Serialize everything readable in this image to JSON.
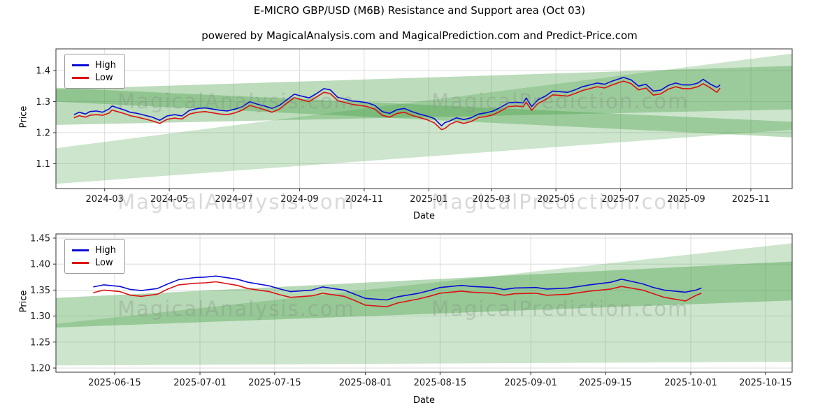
{
  "page": {
    "title": "E-MICRO GBP/USD (M6B) Resistance and Support area (Oct 03)",
    "subtitle": "powered by MagicalAnalysis.com and MagicalPrediction.com and Predict-Price.com"
  },
  "watermarks": [
    "MagicalAnalysis.com",
    "MagicalPrediction.com"
  ],
  "colors": {
    "high": "#0b0bd6",
    "low": "#dd1111",
    "band_light": "#55aa55",
    "band_mid": "#3f9b3f",
    "grid": "#d8d8d8"
  },
  "chart_data": [
    {
      "type": "line",
      "title": "Daily High/Low with resistance and support bands",
      "xlabel": "Date",
      "ylabel": "Price",
      "xlim": [
        "2024-01-15",
        "2025-12-10"
      ],
      "ylim": [
        1.02,
        1.47
      ],
      "grid": true,
      "legend_position": "upper left",
      "xticks": [
        {
          "v": "2024-03-01",
          "label": "2024-03"
        },
        {
          "v": "2024-05-01",
          "label": "2024-05"
        },
        {
          "v": "2024-07-01",
          "label": "2024-07"
        },
        {
          "v": "2024-09-01",
          "label": "2024-09"
        },
        {
          "v": "2024-11-01",
          "label": "2024-11"
        },
        {
          "v": "2025-01-01",
          "label": "2025-01"
        },
        {
          "v": "2025-03-01",
          "label": "2025-03"
        },
        {
          "v": "2025-05-01",
          "label": "2025-05"
        },
        {
          "v": "2025-07-01",
          "label": "2025-07"
        },
        {
          "v": "2025-09-01",
          "label": "2025-09"
        },
        {
          "v": "2025-11-01",
          "label": "2025-11"
        }
      ],
      "yticks": [
        {
          "v": 1.1,
          "label": "1.1"
        },
        {
          "v": 1.2,
          "label": "1.2"
        },
        {
          "v": 1.3,
          "label": "1.3"
        },
        {
          "v": 1.4,
          "label": "1.4"
        }
      ],
      "series": [
        {
          "name": "High",
          "color": "#0b0bd6"
        },
        {
          "name": "Low",
          "color": "#dd1111"
        }
      ],
      "rows": [
        [
          "2024-02-01",
          1.258,
          1.248
        ],
        [
          "2024-02-06",
          1.266,
          1.255
        ],
        [
          "2024-02-12",
          1.26,
          1.25
        ],
        [
          "2024-02-16",
          1.268,
          1.256
        ],
        [
          "2024-02-22",
          1.27,
          1.258
        ],
        [
          "2024-02-28",
          1.266,
          1.256
        ],
        [
          "2024-03-05",
          1.276,
          1.263
        ],
        [
          "2024-03-08",
          1.286,
          1.273
        ],
        [
          "2024-03-13",
          1.28,
          1.268
        ],
        [
          "2024-03-19",
          1.274,
          1.262
        ],
        [
          "2024-03-25",
          1.266,
          1.255
        ],
        [
          "2024-04-01",
          1.262,
          1.25
        ],
        [
          "2024-04-08",
          1.256,
          1.244
        ],
        [
          "2024-04-15",
          1.25,
          1.238
        ],
        [
          "2024-04-22",
          1.24,
          1.23
        ],
        [
          "2024-04-29",
          1.254,
          1.243
        ],
        [
          "2024-05-06",
          1.258,
          1.247
        ],
        [
          "2024-05-13",
          1.254,
          1.244
        ],
        [
          "2024-05-20",
          1.272,
          1.26
        ],
        [
          "2024-05-28",
          1.278,
          1.266
        ],
        [
          "2024-06-04",
          1.28,
          1.268
        ],
        [
          "2024-06-11",
          1.276,
          1.264
        ],
        [
          "2024-06-18",
          1.272,
          1.26
        ],
        [
          "2024-06-25",
          1.27,
          1.258
        ],
        [
          "2024-07-02",
          1.276,
          1.264
        ],
        [
          "2024-07-09",
          1.284,
          1.273
        ],
        [
          "2024-07-16",
          1.3,
          1.288
        ],
        [
          "2024-07-23",
          1.292,
          1.281
        ],
        [
          "2024-07-30",
          1.286,
          1.274
        ],
        [
          "2024-08-06",
          1.278,
          1.266
        ],
        [
          "2024-08-13",
          1.288,
          1.276
        ],
        [
          "2024-08-20",
          1.306,
          1.295
        ],
        [
          "2024-08-27",
          1.324,
          1.313
        ],
        [
          "2024-09-03",
          1.318,
          1.306
        ],
        [
          "2024-09-10",
          1.312,
          1.3
        ],
        [
          "2024-09-17",
          1.326,
          1.315
        ],
        [
          "2024-09-24",
          1.342,
          1.33
        ],
        [
          "2024-09-30",
          1.338,
          1.326
        ],
        [
          "2024-10-07",
          1.314,
          1.303
        ],
        [
          "2024-10-14",
          1.308,
          1.297
        ],
        [
          "2024-10-21",
          1.302,
          1.291
        ],
        [
          "2024-10-28",
          1.3,
          1.288
        ],
        [
          "2024-11-04",
          1.296,
          1.284
        ],
        [
          "2024-11-11",
          1.288,
          1.276
        ],
        [
          "2024-11-18",
          1.268,
          1.256
        ],
        [
          "2024-11-25",
          1.262,
          1.25
        ],
        [
          "2024-12-02",
          1.274,
          1.262
        ],
        [
          "2024-12-09",
          1.278,
          1.266
        ],
        [
          "2024-12-16",
          1.268,
          1.256
        ],
        [
          "2024-12-23",
          1.26,
          1.249
        ],
        [
          "2024-12-30",
          1.254,
          1.242
        ],
        [
          "2025-01-06",
          1.246,
          1.232
        ],
        [
          "2025-01-13",
          1.222,
          1.21
        ],
        [
          "2025-01-16",
          1.232,
          1.213
        ],
        [
          "2025-01-21",
          1.238,
          1.227
        ],
        [
          "2025-01-27",
          1.248,
          1.236
        ],
        [
          "2025-02-03",
          1.242,
          1.23
        ],
        [
          "2025-02-10",
          1.248,
          1.236
        ],
        [
          "2025-02-17",
          1.26,
          1.249
        ],
        [
          "2025-02-24",
          1.264,
          1.252
        ],
        [
          "2025-03-03",
          1.27,
          1.258
        ],
        [
          "2025-03-10",
          1.282,
          1.27
        ],
        [
          "2025-03-17",
          1.296,
          1.284
        ],
        [
          "2025-03-24",
          1.298,
          1.286
        ],
        [
          "2025-03-31",
          1.296,
          1.284
        ],
        [
          "2025-04-03",
          1.312,
          1.298
        ],
        [
          "2025-04-08",
          1.284,
          1.272
        ],
        [
          "2025-04-14",
          1.306,
          1.294
        ],
        [
          "2025-04-21",
          1.318,
          1.306
        ],
        [
          "2025-04-28",
          1.334,
          1.322
        ],
        [
          "2025-05-05",
          1.332,
          1.32
        ],
        [
          "2025-05-12",
          1.33,
          1.318
        ],
        [
          "2025-05-19",
          1.338,
          1.326
        ],
        [
          "2025-05-26",
          1.348,
          1.336
        ],
        [
          "2025-06-02",
          1.354,
          1.342
        ],
        [
          "2025-06-09",
          1.36,
          1.348
        ],
        [
          "2025-06-16",
          1.356,
          1.344
        ],
        [
          "2025-06-23",
          1.366,
          1.354
        ],
        [
          "2025-06-30",
          1.374,
          1.362
        ],
        [
          "2025-07-04",
          1.378,
          1.366
        ],
        [
          "2025-07-11",
          1.37,
          1.358
        ],
        [
          "2025-07-18",
          1.35,
          1.338
        ],
        [
          "2025-07-25",
          1.356,
          1.344
        ],
        [
          "2025-08-01",
          1.334,
          1.321
        ],
        [
          "2025-08-08",
          1.337,
          1.325
        ],
        [
          "2025-08-15",
          1.352,
          1.34
        ],
        [
          "2025-08-22",
          1.36,
          1.348
        ],
        [
          "2025-08-29",
          1.354,
          1.342
        ],
        [
          "2025-09-05",
          1.354,
          1.342
        ],
        [
          "2025-09-12",
          1.36,
          1.348
        ],
        [
          "2025-09-17",
          1.372,
          1.358
        ],
        [
          "2025-09-24",
          1.356,
          1.344
        ],
        [
          "2025-09-30",
          1.346,
          1.33
        ],
        [
          "2025-10-03",
          1.354,
          1.344
        ]
      ],
      "bands": [
        {
          "pts": [
            [
              0,
              1.15
            ],
            [
              1,
              1.455
            ],
            [
              1,
              1.21
            ],
            [
              0,
              1.035
            ]
          ],
          "color": "#55aa55",
          "opacity": 0.3
        },
        {
          "pts": [
            [
              0,
              1.34
            ],
            [
              1,
              1.415
            ],
            [
              1,
              1.275
            ],
            [
              0,
              1.225
            ]
          ],
          "color": "#3f9b3f",
          "opacity": 0.35
        },
        {
          "pts": [
            [
              0,
              1.345
            ],
            [
              1,
              1.235
            ],
            [
              1,
              1.185
            ],
            [
              0,
              1.3
            ]
          ],
          "color": "#3f9b3f",
          "opacity": 0.35
        }
      ]
    },
    {
      "type": "line",
      "title": "Recent months zoom with resistance and support bands",
      "xlabel": "Date",
      "ylabel": "Price",
      "xlim": [
        "2025-06-04",
        "2025-10-20"
      ],
      "ylim": [
        1.192,
        1.458
      ],
      "grid": true,
      "legend_position": "upper left",
      "xticks": [
        {
          "v": "2025-06-15",
          "label": "2025-06-15"
        },
        {
          "v": "2025-07-01",
          "label": "2025-07-01"
        },
        {
          "v": "2025-07-15",
          "label": "2025-07-15"
        },
        {
          "v": "2025-08-01",
          "label": "2025-08-01"
        },
        {
          "v": "2025-08-15",
          "label": "2025-08-15"
        },
        {
          "v": "2025-09-01",
          "label": "2025-09-01"
        },
        {
          "v": "2025-09-15",
          "label": "2025-09-15"
        },
        {
          "v": "2025-10-01",
          "label": "2025-10-01"
        },
        {
          "v": "2025-10-15",
          "label": "2025-10-15"
        }
      ],
      "yticks": [
        {
          "v": 1.2,
          "label": "1.20"
        },
        {
          "v": 1.25,
          "label": "1.25"
        },
        {
          "v": 1.3,
          "label": "1.30"
        },
        {
          "v": 1.35,
          "label": "1.35"
        },
        {
          "v": 1.4,
          "label": "1.40"
        },
        {
          "v": 1.45,
          "label": "1.45"
        }
      ],
      "series": [
        {
          "name": "High",
          "color": "#0b0bd6"
        },
        {
          "name": "Low",
          "color": "#dd1111"
        }
      ],
      "rows": [
        [
          "2025-06-11",
          1.356,
          1.345
        ],
        [
          "2025-06-13",
          1.36,
          1.35
        ],
        [
          "2025-06-16",
          1.357,
          1.347
        ],
        [
          "2025-06-18",
          1.351,
          1.34
        ],
        [
          "2025-06-20",
          1.349,
          1.338
        ],
        [
          "2025-06-23",
          1.353,
          1.342
        ],
        [
          "2025-06-25",
          1.362,
          1.352
        ],
        [
          "2025-06-27",
          1.37,
          1.36
        ],
        [
          "2025-06-30",
          1.374,
          1.363
        ],
        [
          "2025-07-02",
          1.375,
          1.364
        ],
        [
          "2025-07-04",
          1.377,
          1.366
        ],
        [
          "2025-07-08",
          1.371,
          1.359
        ],
        [
          "2025-07-10",
          1.365,
          1.353
        ],
        [
          "2025-07-14",
          1.358,
          1.347
        ],
        [
          "2025-07-16",
          1.352,
          1.341
        ],
        [
          "2025-07-18",
          1.347,
          1.336
        ],
        [
          "2025-07-22",
          1.35,
          1.339
        ],
        [
          "2025-07-24",
          1.356,
          1.344
        ],
        [
          "2025-07-28",
          1.35,
          1.338
        ],
        [
          "2025-07-30",
          1.342,
          1.33
        ],
        [
          "2025-08-01",
          1.334,
          1.321
        ],
        [
          "2025-08-05",
          1.331,
          1.318
        ],
        [
          "2025-08-07",
          1.337,
          1.325
        ],
        [
          "2025-08-11",
          1.344,
          1.333
        ],
        [
          "2025-08-13",
          1.349,
          1.338
        ],
        [
          "2025-08-15",
          1.355,
          1.344
        ],
        [
          "2025-08-19",
          1.359,
          1.348
        ],
        [
          "2025-08-21",
          1.357,
          1.346
        ],
        [
          "2025-08-25",
          1.355,
          1.344
        ],
        [
          "2025-08-27",
          1.351,
          1.34
        ],
        [
          "2025-08-29",
          1.354,
          1.343
        ],
        [
          "2025-09-02",
          1.355,
          1.344
        ],
        [
          "2025-09-04",
          1.352,
          1.34
        ],
        [
          "2025-09-08",
          1.354,
          1.342
        ],
        [
          "2025-09-10",
          1.357,
          1.345
        ],
        [
          "2025-09-12",
          1.36,
          1.348
        ],
        [
          "2025-09-16",
          1.365,
          1.352
        ],
        [
          "2025-09-18",
          1.371,
          1.357
        ],
        [
          "2025-09-22",
          1.362,
          1.35
        ],
        [
          "2025-09-24",
          1.355,
          1.343
        ],
        [
          "2025-09-26",
          1.35,
          1.336
        ],
        [
          "2025-09-30",
          1.346,
          1.329
        ],
        [
          "2025-10-02",
          1.35,
          1.34
        ],
        [
          "2025-10-03",
          1.354,
          1.344
        ]
      ],
      "bands": [
        {
          "pts": [
            [
              0,
              1.285
            ],
            [
              1,
              1.44
            ],
            [
              1,
              1.212
            ],
            [
              0,
              1.205
            ]
          ],
          "color": "#55aa55",
          "opacity": 0.3
        },
        {
          "pts": [
            [
              0,
              1.335
            ],
            [
              1,
              1.405
            ],
            [
              1,
              1.33
            ],
            [
              0,
              1.278
            ]
          ],
          "color": "#3f9b3f",
          "opacity": 0.38
        }
      ]
    }
  ]
}
